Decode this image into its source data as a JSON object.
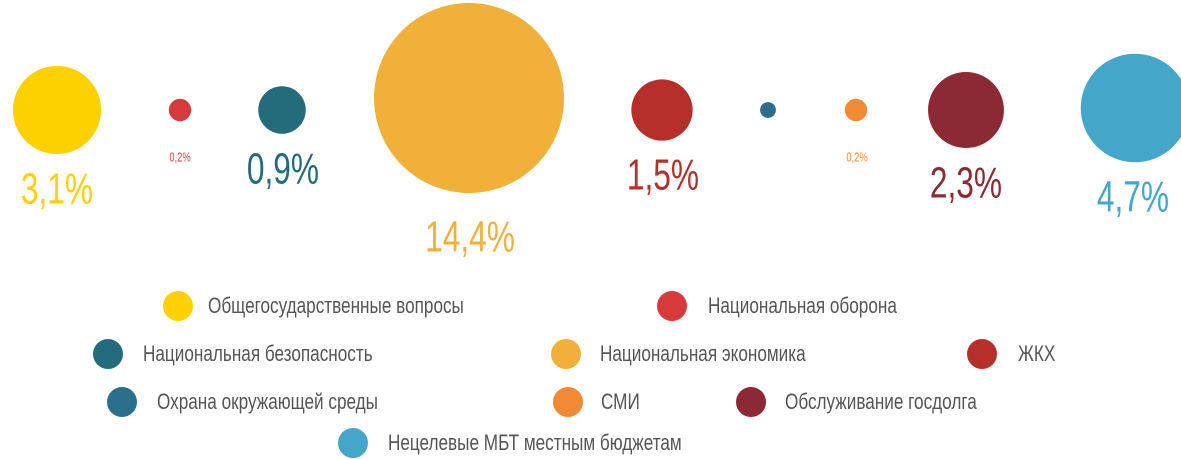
{
  "chart_data": {
    "type": "bubble",
    "categories": [
      "Общегосударственные вопросы",
      "Национальная оборона",
      "Национальная безопасность",
      "Национальная экономика",
      "ЖКХ",
      "Охрана окружающей среды",
      "СМИ",
      "Обслуживание госдолга",
      "Нецелевые МБТ местным бюджетам"
    ],
    "values": [
      3.1,
      0.2,
      0.9,
      14.4,
      1.5,
      0.1,
      0.2,
      2.3,
      4.7
    ],
    "value_labels": [
      "3,1%",
      "0,2%",
      "0,9%",
      "14,4%",
      "1,5%",
      null,
      "0,2%",
      "2,3%",
      "4,7%"
    ],
    "colors": [
      "#fdd000",
      "#d63a3a",
      "#246b7c",
      "#f0b03a",
      "#b5302a",
      "#2c6f8c",
      "#f08a34",
      "#8b2a35",
      "#44a7c9"
    ]
  }
}
